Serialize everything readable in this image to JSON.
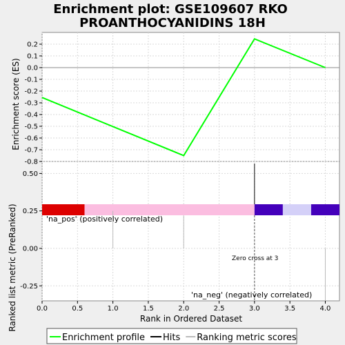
{
  "title_line1": "Enrichment plot: GSE109607 RKO",
  "title_line2": "PROANTHOCYANIDINS 18H",
  "chart_data": {
    "type": "line",
    "x_axis": {
      "label": "Rank in Ordered Dataset",
      "range": [
        0,
        4.2
      ],
      "ticks": [
        0.0,
        0.5,
        1.0,
        1.5,
        2.0,
        2.5,
        3.0,
        3.5,
        4.0
      ],
      "tick_labels": [
        "0.0",
        "0.5",
        "1.0",
        "1.5",
        "2.0",
        "2.5",
        "3.0",
        "3.5",
        "4.0"
      ]
    },
    "enrichment_panel": {
      "ylabel": "Enrichment score (ES)",
      "ylim": [
        -0.8,
        0.3
      ],
      "ticks": [
        0.2,
        0.1,
        0.0,
        -0.1,
        -0.2,
        -0.3,
        -0.4,
        -0.5,
        -0.6,
        -0.7,
        -0.8
      ],
      "tick_labels": [
        "0.2",
        "0.1",
        "0.0",
        "-0.1",
        "-0.2",
        "-0.3",
        "-0.4",
        "-0.5",
        "-0.6",
        "-0.7",
        "-0.8"
      ],
      "series": [
        {
          "name": "Enrichment profile",
          "color": "#00ff00",
          "x": [
            0,
            2,
            3,
            4
          ],
          "y": [
            -0.255,
            -0.75,
            0.245,
            0.0
          ]
        }
      ]
    },
    "hits": {
      "x": [
        3
      ],
      "color": "#000000"
    },
    "color_bar": [
      {
        "from": 0.0,
        "to": 0.6,
        "color": "#dd0000"
      },
      {
        "from": 0.6,
        "to": 3.0,
        "color": "#fbbde0"
      },
      {
        "from": 3.0,
        "to": 3.4,
        "color": "#4400bb"
      },
      {
        "from": 3.4,
        "to": 3.8,
        "color": "#d4d0f8"
      },
      {
        "from": 3.8,
        "to": 4.2,
        "color": "#4400bb"
      }
    ],
    "ranking_panel": {
      "ylabel": "Ranked list metric (PreRanked)",
      "ylim": [
        -0.35,
        0.58
      ],
      "ticks": [
        0.5,
        0.25,
        0.0,
        -0.25
      ],
      "tick_labels": [
        "0.50",
        "0.25",
        "0.00",
        "-0.25"
      ],
      "metric_values": [
        {
          "x": 1,
          "y": 0.25
        },
        {
          "x": 2,
          "y": 0.22
        },
        {
          "x": 3,
          "y": 0.0
        },
        {
          "x": 4,
          "y": -0.35
        }
      ],
      "pos_label": "'na_pos' (positively correlated)",
      "neg_label": "'na_neg' (negatively correlated)",
      "zero_cross_label": "Zero cross at 3",
      "zero_cross_x": 3
    }
  },
  "legend": {
    "items": [
      {
        "label": "Enrichment profile",
        "color": "#00ff00"
      },
      {
        "label": "Hits",
        "color": "#000000"
      },
      {
        "label": "Ranking metric scores",
        "color": "#bbbbbb"
      }
    ]
  },
  "colors": {
    "pos_label": "#cc0000",
    "neg_label": "#0000cc",
    "grid": "#d9d9d9",
    "plot_bg": "#ffffff"
  }
}
